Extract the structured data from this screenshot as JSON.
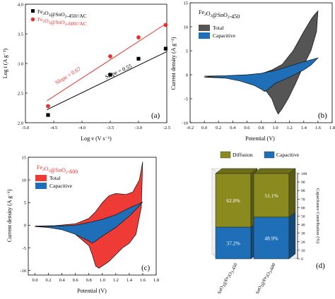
{
  "chart_data": [
    {
      "panel": "(a)",
      "type": "scatter",
      "xlabel": "Log v (V s⁻¹)",
      "ylabel": "Log i (A g⁻¹)",
      "xlim": [
        -5.0,
        -2.5
      ],
      "ylim": [
        2.0,
        4.0
      ],
      "xticks": [
        "-5.0",
        "-4.5",
        "-4.0",
        "-3.5",
        "-3.0",
        "-2.5"
      ],
      "yticks": [
        "2.0",
        "2.5",
        "3.0",
        "3.5",
        "4.0"
      ],
      "legend_position": "top-left",
      "series": [
        {
          "name": "Fe₂O₃@SnO₂-450//AC",
          "color": "#000000",
          "marker": "square",
          "x": [
            -4.6,
            -3.5,
            -3.0,
            -2.52
          ],
          "y": [
            2.13,
            2.81,
            3.08,
            3.25
          ],
          "fit": {
            "slope": 0.55,
            "label": "Slope = 0.55",
            "x": [
              -4.62,
              -2.5
            ],
            "y": [
              2.22,
              3.2
            ]
          }
        },
        {
          "name": "Fe₂O₃@SnO₂-600//AC",
          "color": "#e8302c",
          "marker": "circle",
          "x": [
            -4.6,
            -3.5,
            -3.0,
            -2.52
          ],
          "y": [
            2.28,
            3.12,
            3.44,
            3.65
          ],
          "fit": {
            "slope": 0.67,
            "label": "Slope = 0.67",
            "x": [
              -4.62,
              -2.5
            ],
            "y": [
              2.37,
              3.68
            ]
          }
        }
      ]
    },
    {
      "panel": "(b)",
      "type": "area",
      "title": "Fe₂O₃@SnO₂-450",
      "xlabel": "Potential (V)",
      "ylabel": "Current density (A g⁻¹)",
      "xlim": [
        -0.2,
        1.8
      ],
      "ylim": [
        -10,
        15
      ],
      "xticks": [
        "-0.2",
        "0.0",
        "0.2",
        "0.4",
        "0.6",
        "0.8",
        "1.0",
        "1.2",
        "1.4",
        "1.6",
        "1.8"
      ],
      "yticks": [
        "-10",
        "-5",
        "0",
        "5",
        "10",
        "15"
      ],
      "legend_position": "top-left",
      "series": [
        {
          "name": "Total",
          "color": "#555555",
          "x": [
            0.0,
            0.3,
            0.6,
            0.8,
            0.95,
            1.1,
            1.25,
            1.4,
            1.5,
            1.55,
            1.6,
            1.58,
            1.5,
            1.4,
            1.28,
            1.18,
            1.1,
            1.04,
            1.0,
            0.95,
            0.85,
            0.7,
            0.5,
            0.3,
            0.0
          ],
          "y": [
            -0.5,
            -0.4,
            -0.2,
            0.2,
            1.0,
            2.2,
            5.0,
            9.0,
            11.5,
            12.5,
            13.3,
            9.0,
            5.0,
            2.0,
            -2.0,
            -5.0,
            -7.0,
            -8.2,
            -7.0,
            -5.0,
            -3.0,
            -1.5,
            -1.0,
            -0.7,
            -0.5
          ]
        },
        {
          "name": "Capacitive",
          "color": "#1e6fb7",
          "x": [
            0.0,
            0.3,
            0.6,
            0.8,
            1.0,
            1.2,
            1.4,
            1.6,
            1.5,
            1.4,
            1.2,
            1.0,
            0.9,
            0.85,
            0.8,
            0.7,
            0.5,
            0.3,
            0.0
          ],
          "y": [
            -0.3,
            -0.2,
            0.0,
            0.3,
            0.9,
            1.8,
            2.7,
            3.5,
            2.0,
            1.0,
            -0.5,
            -1.8,
            -3.0,
            -3.5,
            -3.0,
            -2.2,
            -1.3,
            -0.7,
            -0.3
          ]
        }
      ]
    },
    {
      "panel": "(c)",
      "type": "area",
      "title": "Fe₂O₃@SnO₂-600",
      "xlabel": "Potential (V)",
      "ylabel": "Current density (A g⁻¹)",
      "xlim": [
        -0.1,
        1.8
      ],
      "ylim": [
        -11,
        15
      ],
      "xticks": [
        "0.0",
        "0.2",
        "0.4",
        "0.6",
        "0.8",
        "1.0",
        "1.2",
        "1.4",
        "1.6",
        "1.8"
      ],
      "yticks": [
        "-10",
        "-5",
        "0",
        "5",
        "10",
        "15"
      ],
      "legend_position": "top-left",
      "series": [
        {
          "name": "Total",
          "color": "#ef3b36",
          "x": [
            0.0,
            0.3,
            0.6,
            0.8,
            0.9,
            1.0,
            1.1,
            1.2,
            1.35,
            1.45,
            1.55,
            1.6,
            1.58,
            1.5,
            1.4,
            1.3,
            1.2,
            1.1,
            1.0,
            0.95,
            0.9,
            0.85,
            0.8,
            0.6,
            0.4,
            0.2,
            0.0
          ],
          "y": [
            -0.2,
            -0.1,
            0.3,
            1.5,
            3.0,
            5.0,
            6.5,
            7.0,
            6.8,
            7.3,
            10.0,
            14.0,
            4.0,
            -2.0,
            -4.0,
            -5.0,
            -6.5,
            -8.0,
            -9.0,
            -9.5,
            -9.0,
            -6.5,
            -4.5,
            -2.0,
            -0.8,
            -0.4,
            -0.2
          ]
        },
        {
          "name": "Capacitive",
          "color": "#1e6fb7",
          "x": [
            0.0,
            0.3,
            0.6,
            0.8,
            1.0,
            1.2,
            1.4,
            1.6,
            1.5,
            1.4,
            1.2,
            1.0,
            0.9,
            0.85,
            0.8,
            0.6,
            0.4,
            0.2,
            0.0
          ],
          "y": [
            -0.3,
            -0.2,
            0.0,
            0.6,
            1.3,
            2.3,
            3.8,
            5.1,
            3.5,
            2.0,
            -0.5,
            -2.4,
            -3.5,
            -4.0,
            -3.5,
            -2.0,
            -1.0,
            -0.5,
            -0.3
          ]
        }
      ]
    },
    {
      "panel": "(d)",
      "type": "bar",
      "ylabel": "Capacitance Contribution (%)",
      "ylim": [
        0,
        100
      ],
      "yticks": [
        "0",
        "10",
        "20",
        "30",
        "40",
        "50",
        "60",
        "70",
        "80",
        "90",
        "100"
      ],
      "categories": [
        "SnO₂@Fe₂O₃-450",
        "SnO₂@Fe₂O₃-600"
      ],
      "legend_position": "top",
      "series": [
        {
          "name": "Capacitive",
          "color": "#1e6fb7",
          "values": [
            37.2,
            48.9
          ],
          "labels": [
            "37.2%",
            "48.9%"
          ]
        },
        {
          "name": "Diffusion",
          "color": "#8a8a1e",
          "values": [
            62.8,
            51.1
          ],
          "labels": [
            "62.8%",
            "51.1%"
          ]
        }
      ]
    }
  ]
}
